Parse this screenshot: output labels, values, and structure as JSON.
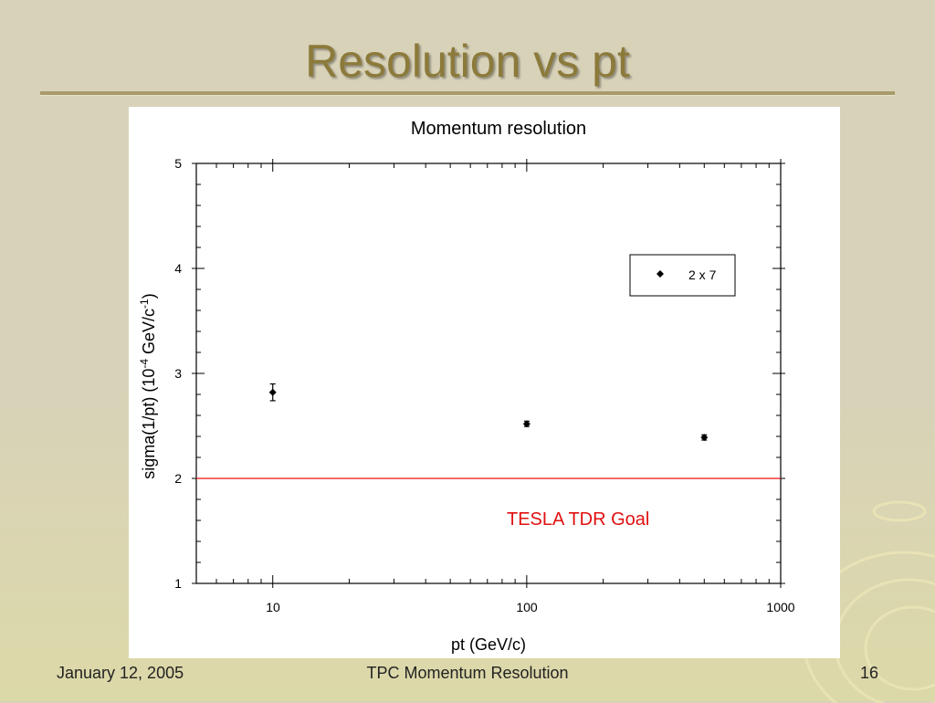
{
  "slide": {
    "title": "Resolution vs pt",
    "footer_date": "January 12, 2005",
    "footer_center": "TPC Momentum Resolution",
    "page_number": "16"
  },
  "chart_data": {
    "type": "scatter",
    "title": "Momentum resolution",
    "xlabel": "pt (GeV/c)",
    "ylabel_prefix": "sigma(1/pt)  (10",
    "ylabel_exp1": "-4",
    "ylabel_mid": " GeV/c",
    "ylabel_exp2": "-1",
    "ylabel_suffix": ")",
    "xscale": "log",
    "xlim": [
      5,
      1000
    ],
    "ylim": [
      1,
      5
    ],
    "x_tick_labels": [
      "10",
      "100",
      "1000"
    ],
    "y_tick_labels": [
      "1",
      "2",
      "3",
      "4",
      "5"
    ],
    "series": [
      {
        "name": "2 x 7",
        "marker": "diamond",
        "color": "#000000",
        "x": [
          10,
          100,
          500
        ],
        "y": [
          2.82,
          2.52,
          2.39
        ],
        "yerr": [
          0.08,
          0.025,
          0.025
        ]
      }
    ],
    "reference_line": {
      "y": 2.0,
      "color": "#ee1111",
      "label": "TESLA TDR Goal"
    },
    "legend_position": "top-right",
    "grid": false
  }
}
